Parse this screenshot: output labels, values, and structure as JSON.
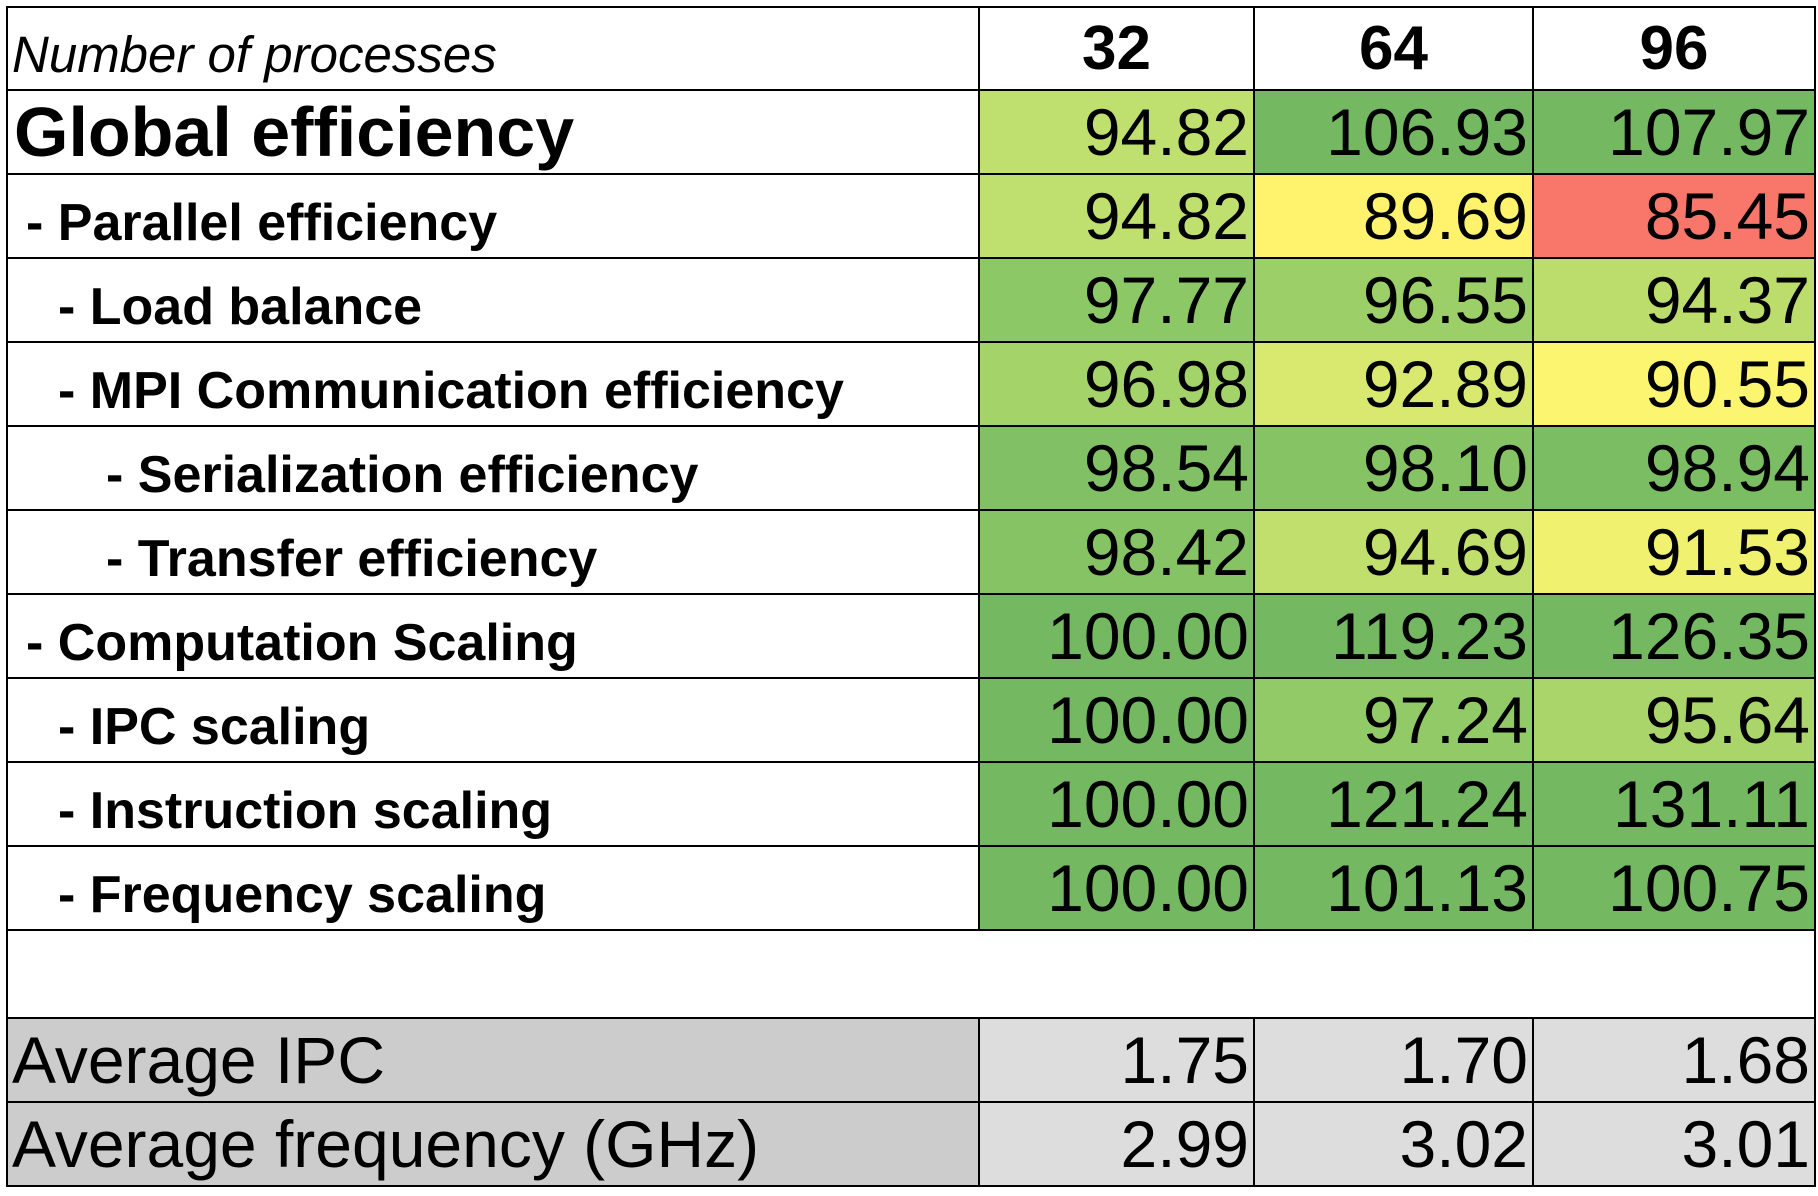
{
  "chart_data": {
    "type": "table",
    "header": {
      "label": "Number of processes",
      "columns": [
        "32",
        "64",
        "96"
      ]
    },
    "rows": [
      {
        "label": "Global efficiency",
        "level": 0,
        "values": [
          94.82,
          106.93,
          107.97
        ],
        "display": [
          "94.82",
          "106.93",
          "107.97"
        ],
        "colors": [
          "#bfdf6e",
          "#74b862",
          "#74b862"
        ]
      },
      {
        "label": "- Parallel efficiency",
        "level": 1,
        "values": [
          94.82,
          89.69,
          85.45
        ],
        "display": [
          "94.82",
          "89.69",
          "85.45"
        ],
        "colors": [
          "#bfdf6e",
          "#fff36e",
          "#f8766a"
        ]
      },
      {
        "label": "- Load balance",
        "level": 2,
        "values": [
          97.77,
          96.55,
          94.37
        ],
        "display": [
          "97.77",
          "96.55",
          "94.37"
        ],
        "colors": [
          "#8dc866",
          "#9ccf68",
          "#bcdd6c"
        ]
      },
      {
        "label": "- MPI Communication efficiency",
        "level": 2,
        "values": [
          96.98,
          92.89,
          90.55
        ],
        "display": [
          "96.98",
          "92.89",
          "90.55"
        ],
        "colors": [
          "#a3d369",
          "#d9e86f",
          "#fcf56f"
        ]
      },
      {
        "label": "- Serialization efficiency",
        "level": 3,
        "values": [
          98.54,
          98.1,
          98.94
        ],
        "display": [
          "98.54",
          "98.10",
          "98.94"
        ],
        "colors": [
          "#81c064",
          "#86c365",
          "#7bbd63"
        ]
      },
      {
        "label": "- Transfer efficiency",
        "level": 3,
        "values": [
          98.42,
          94.69,
          91.53
        ],
        "display": [
          "98.42",
          "94.69",
          "91.53"
        ],
        "colors": [
          "#86c365",
          "#c1df6c",
          "#f0f26f"
        ]
      },
      {
        "label": "- Computation Scaling",
        "level": 1,
        "values": [
          100.0,
          119.23,
          126.35
        ],
        "display": [
          "100.00",
          "119.23",
          "126.35"
        ],
        "colors": [
          "#74b862",
          "#74b862",
          "#74b862"
        ]
      },
      {
        "label": "- IPC scaling",
        "level": 2,
        "values": [
          100.0,
          97.24,
          95.64
        ],
        "display": [
          "100.00",
          "97.24",
          "95.64"
        ],
        "colors": [
          "#74b862",
          "#91ca67",
          "#a9d56a"
        ]
      },
      {
        "label": "- Instruction scaling",
        "level": 2,
        "values": [
          100.0,
          121.24,
          131.11
        ],
        "display": [
          "100.00",
          "121.24",
          "131.11"
        ],
        "colors": [
          "#74b862",
          "#74b862",
          "#74b862"
        ]
      },
      {
        "label": "- Frequency scaling",
        "level": 2,
        "values": [
          100.0,
          101.13,
          100.75
        ],
        "display": [
          "100.00",
          "101.13",
          "100.75"
        ],
        "colors": [
          "#74b862",
          "#74b862",
          "#74b862"
        ]
      }
    ],
    "extra_rows": [
      {
        "label": "Average IPC",
        "values": [
          1.75,
          1.7,
          1.68
        ],
        "display": [
          "1.75",
          "1.70",
          "1.68"
        ]
      },
      {
        "label": "Average frequency (GHz)",
        "values": [
          2.99,
          3.02,
          3.01
        ],
        "display": [
          "2.99",
          "3.02",
          "3.01"
        ]
      }
    ]
  }
}
